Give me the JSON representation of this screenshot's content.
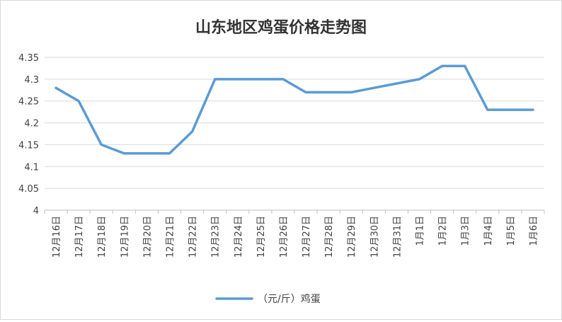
{
  "chart_data": {
    "type": "line",
    "title": "山东地区鸡蛋价格走势图",
    "xlabel": "",
    "ylabel": "",
    "categories": [
      "12月16日",
      "12月17日",
      "12月18日",
      "12月19日",
      "12月20日",
      "12月21日",
      "12月22日",
      "12月23日",
      "12月24日",
      "12月25日",
      "12月26日",
      "12月27日",
      "12月28日",
      "12月29日",
      "12月30日",
      "12月31日",
      "1月1日",
      "1月2日",
      "1月3日",
      "1月4日",
      "1月5日",
      "1月6日"
    ],
    "series": [
      {
        "name": "（元/斤）鸡蛋",
        "color": "#5b9bd5",
        "values": [
          4.28,
          4.25,
          4.15,
          4.13,
          4.13,
          4.13,
          4.18,
          4.3,
          4.3,
          4.3,
          4.3,
          4.27,
          4.27,
          4.27,
          4.28,
          4.29,
          4.3,
          4.33,
          4.33,
          4.23,
          4.23,
          4.23
        ]
      }
    ],
    "ylim": [
      4,
      4.35
    ],
    "yticks": [
      4,
      4.05,
      4.1,
      4.15,
      4.2,
      4.25,
      4.3,
      4.35
    ],
    "ytick_labels": [
      "4",
      "4.05",
      "4.1",
      "4.15",
      "4.2",
      "4.25",
      "4.3",
      "4.35"
    ],
    "grid": true,
    "legend_position": "bottom",
    "gridline_color": "#d9d9d9",
    "axis_color": "#bfbfbf"
  }
}
